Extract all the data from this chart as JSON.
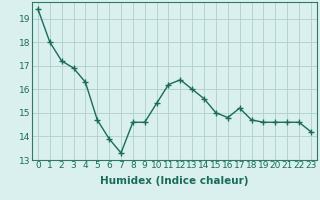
{
  "x": [
    0,
    1,
    2,
    3,
    4,
    5,
    6,
    7,
    8,
    9,
    10,
    11,
    12,
    13,
    14,
    15,
    16,
    17,
    18,
    19,
    20,
    21,
    22,
    23
  ],
  "y": [
    19.4,
    18.0,
    17.2,
    16.9,
    16.3,
    14.7,
    13.9,
    13.3,
    14.6,
    14.6,
    15.4,
    16.2,
    16.4,
    16.0,
    15.6,
    15.0,
    14.8,
    15.2,
    14.7,
    14.6,
    14.6,
    14.6,
    14.6,
    14.2
  ],
  "xlabel": "Humidex (Indice chaleur)",
  "ylim": [
    13,
    19.7
  ],
  "xlim": [
    -0.5,
    23.5
  ],
  "yticks": [
    13,
    14,
    15,
    16,
    17,
    18,
    19
  ],
  "xticks": [
    0,
    1,
    2,
    3,
    4,
    5,
    6,
    7,
    8,
    9,
    10,
    11,
    12,
    13,
    14,
    15,
    16,
    17,
    18,
    19,
    20,
    21,
    22,
    23
  ],
  "line_color": "#1a6b5a",
  "marker": "+",
  "marker_size": 4,
  "marker_edge_width": 1.0,
  "line_width": 1.0,
  "bg_color": "#d9f0ef",
  "grid_color": "#aecfcc",
  "tick_label_fontsize": 6.5,
  "xlabel_fontsize": 7.5,
  "spine_color": "#2d7a6a"
}
